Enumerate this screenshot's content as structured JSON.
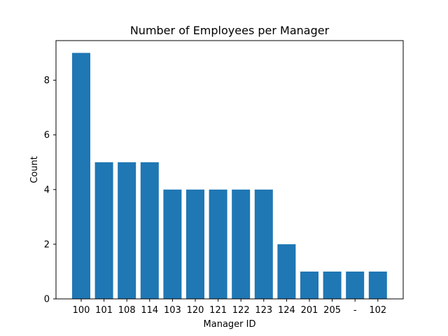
{
  "chart_data": {
    "type": "bar",
    "title": "Number of Employees per Manager",
    "xlabel": "Manager ID",
    "ylabel": "Count",
    "categories": [
      "100",
      "101",
      "108",
      "114",
      "103",
      "120",
      "121",
      "122",
      "123",
      "124",
      "201",
      "205",
      "-",
      "102"
    ],
    "values": [
      9,
      5,
      5,
      5,
      4,
      4,
      4,
      4,
      4,
      2,
      1,
      1,
      1,
      1
    ],
    "ylim": [
      0,
      9.45
    ],
    "yticks": [
      0,
      2,
      4,
      6,
      8
    ],
    "grid": false,
    "legend": "none",
    "bar_color": "#1f77b4"
  }
}
